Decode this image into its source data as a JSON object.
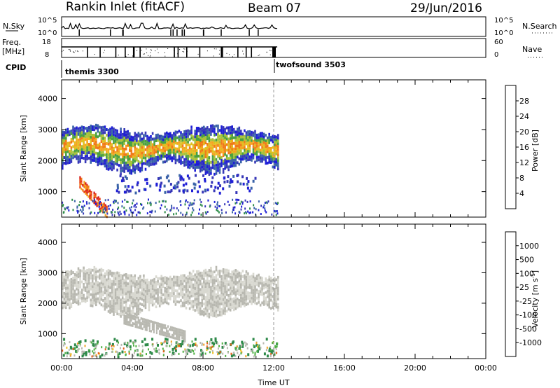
{
  "header": {
    "radar": "Rankin Inlet (fitACF)",
    "beam": "Beam 07",
    "date": "29/Jun/2016"
  },
  "top_panels": {
    "nsky_label": "N.Sky",
    "nsky_ticks": [
      "10^5",
      "10^0"
    ],
    "nsearch_label": "N.Search",
    "nsearch_ticks": [
      "10^5",
      "10^0"
    ],
    "freq_label_1": "Freq.",
    "freq_label_2": "[MHz]",
    "freq_ticks": [
      "18",
      "8"
    ],
    "nave_label": "Nave",
    "nave_ticks": [
      "60",
      "0"
    ],
    "cpid_label": "CPID",
    "cpid_modes": [
      {
        "name": "themis 3300",
        "start_hour": 0
      },
      {
        "name": "twofsound 3503",
        "start_hour": 12
      }
    ]
  },
  "colorbars": {
    "power": {
      "label": "Power [dB]",
      "ticks": [
        "4",
        "8",
        "12",
        "16",
        "20",
        "24",
        "28"
      ],
      "colors": [
        "#1f1fd6",
        "#3838b8",
        "#3a63a8",
        "#2f8e4a",
        "#4aa040",
        "#a8c23a",
        "#e0c020",
        "#f5a51e",
        "#f07a18",
        "#e8401a",
        "#d61a1a"
      ]
    },
    "velocity": {
      "label_main": "Velocity [m s",
      "label_sup": "-1",
      "label_end": "]",
      "ticks": [
        "1000",
        "500",
        "100",
        "25",
        "-25",
        "-100",
        "-500",
        "-1000"
      ],
      "colors": [
        "#2a3cb8",
        "#2f63a8",
        "#2f8a4a",
        "#4fb043",
        "#b8b8b0",
        "#d8d8d0",
        "#f0c020",
        "#f0a020",
        "#e86018",
        "#e83818",
        "#e01818"
      ]
    }
  },
  "chart_data": [
    {
      "type": "heatmap",
      "name": "Power",
      "ylabel": "Slant Range [km]",
      "xlim": [
        0,
        24
      ],
      "ylim": [
        180,
        4600
      ],
      "yticks": [
        1000,
        2000,
        3000,
        4000
      ],
      "ytick_labels": [
        "1000",
        "2000",
        "3000",
        "4000"
      ],
      "unit": "dB",
      "data_end_hour": 12.2,
      "features": [
        {
          "what": "main echo band",
          "hours": [
            0,
            12.2
          ],
          "range_km": [
            1700,
            2900
          ],
          "value_db": 18
        },
        {
          "what": "descending strong echoes",
          "hours": [
            1.0,
            2.6
          ],
          "range_km": [
            300,
            1300
          ],
          "value_db": 28
        },
        {
          "what": "mid-range patches",
          "hours": [
            3.0,
            11.0
          ],
          "range_km": [
            900,
            1500
          ],
          "value_db": 8
        }
      ]
    },
    {
      "type": "heatmap",
      "name": "Velocity",
      "ylabel": "Slant Range [km]",
      "xlabel": "Time UT",
      "xlim": [
        0,
        24
      ],
      "ylim": [
        180,
        4600
      ],
      "yticks": [
        1000,
        2000,
        3000,
        4000
      ],
      "ytick_labels": [
        "1000",
        "2000",
        "3000",
        "4000"
      ],
      "x_ticks": [
        0,
        4,
        8,
        12,
        16,
        20,
        24
      ],
      "x_tick_labels": [
        "00:00",
        "04:00",
        "08:00",
        "12:00",
        "16:00",
        "20:00",
        "00:00"
      ],
      "unit": "m s-1",
      "data_end_hour": 12.2,
      "features": [
        {
          "what": "main echo band (ground scatter)",
          "hours": [
            0,
            12.2
          ],
          "range_km": [
            1700,
            2900
          ],
          "value_ms": 0
        },
        {
          "what": "green patches",
          "hours": [
            3.5,
            7.0
          ],
          "range_km": [
            900,
            1500
          ],
          "value_ms": 100
        },
        {
          "what": "near-range echoes",
          "hours": [
            0,
            12.2
          ],
          "range_km": [
            200,
            800
          ],
          "value_ms": 50
        }
      ]
    }
  ]
}
